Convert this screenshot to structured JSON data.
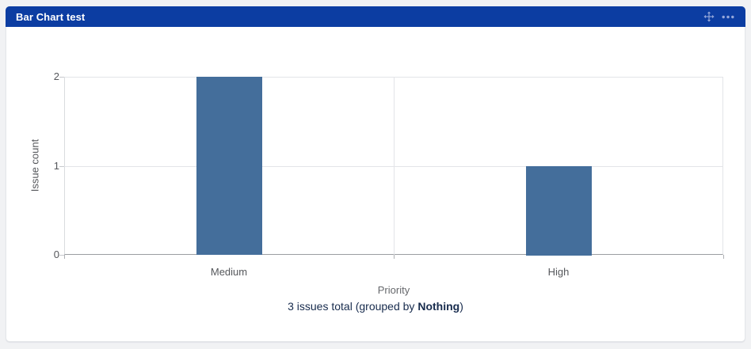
{
  "gadget": {
    "title": "Bar Chart test",
    "header_color": "#0c3da2",
    "icon_color": "#96a8da",
    "icons": [
      {
        "name": "move-gadget-icon",
        "meaning": "drag / move gadget"
      },
      {
        "name": "more-options-icon",
        "meaning": "gadget menu (ellipsis)"
      }
    ]
  },
  "chart_data": {
    "type": "bar",
    "categories": [
      "Medium",
      "High"
    ],
    "values": [
      2,
      1
    ],
    "title": "",
    "xlabel": "Priority",
    "ylabel": "Issue count",
    "ylim": [
      0,
      2
    ],
    "yticks": [
      0,
      1,
      2
    ],
    "bar_color": "#446e9b",
    "grid": true,
    "legend": "none"
  },
  "summary": {
    "prefix": "3 issues total (grouped by ",
    "bold": "Nothing",
    "suffix": ")"
  }
}
